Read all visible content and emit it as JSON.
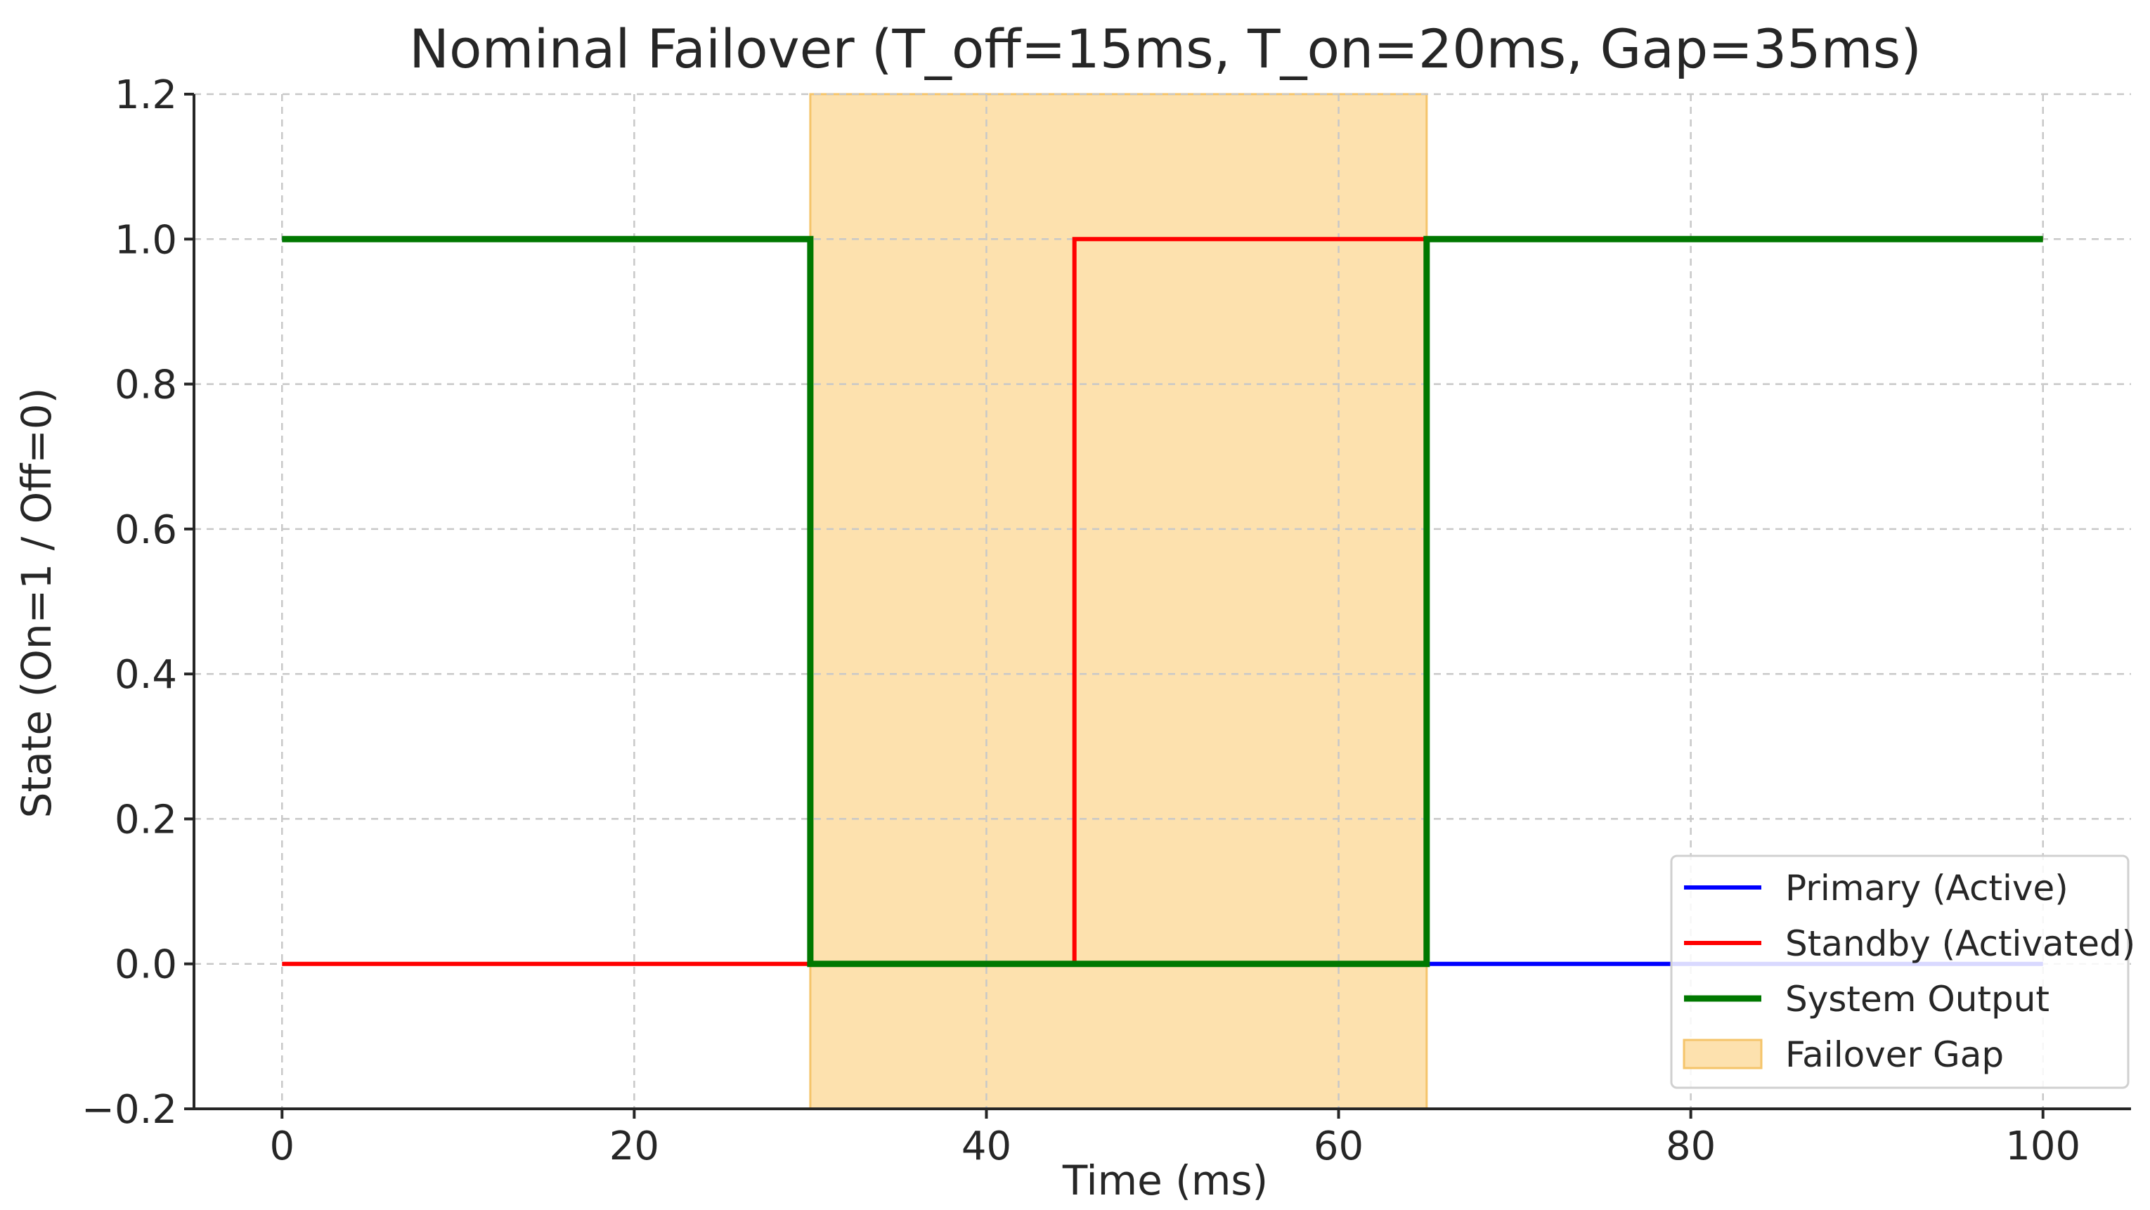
{
  "chart_data": {
    "type": "line",
    "title": "Nominal Failover (T_off=15ms, T_on=20ms, Gap=35ms)",
    "xlabel": "Time (ms)",
    "ylabel": "State (On=1 / Off=0)",
    "xlim": [
      -5,
      105
    ],
    "ylim": [
      -0.2,
      1.2
    ],
    "xticks": [
      0,
      20,
      40,
      60,
      80,
      100
    ],
    "yticks": [
      -0.2,
      0.0,
      0.2,
      0.4,
      0.6,
      0.8,
      1.0,
      1.2
    ],
    "xtick_labels": [
      "0",
      "20",
      "40",
      "60",
      "80",
      "100"
    ],
    "ytick_labels": [
      "−0.2",
      "0.0",
      "0.2",
      "0.4",
      "0.6",
      "0.8",
      "1.0",
      "1.2"
    ],
    "grid": true,
    "legend_position": "bottom-right",
    "shaded_regions": [
      {
        "name": "Failover Gap",
        "x_start": 30,
        "x_end": 65,
        "color": "#fde1ae",
        "edge_color": "#f5c46a"
      }
    ],
    "series": [
      {
        "name": "Primary (Active)",
        "color": "#0000ff",
        "line_width": 6,
        "x": [
          0,
          30,
          30,
          100
        ],
        "y": [
          1,
          1,
          0,
          0
        ]
      },
      {
        "name": "Standby (Activated)",
        "color": "#ff0000",
        "line_width": 6,
        "x": [
          0,
          45,
          45,
          100
        ],
        "y": [
          0,
          0,
          1,
          1
        ]
      },
      {
        "name": "System Output",
        "color": "#007800",
        "line_width": 9,
        "x": [
          0,
          30,
          30,
          65,
          65,
          100
        ],
        "y": [
          1,
          1,
          0,
          0,
          1,
          1
        ]
      }
    ]
  }
}
